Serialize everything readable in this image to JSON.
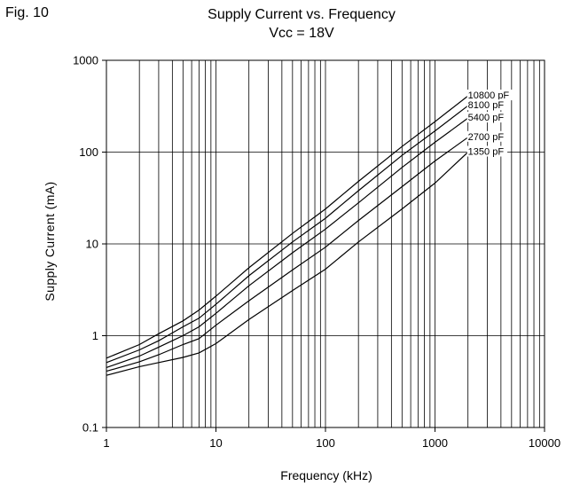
{
  "figure_label": "Fig. 10",
  "chart_data": {
    "type": "line",
    "title": "Supply Current vs. Frequency",
    "subtitle": "Vcc = 18V",
    "xlabel": "Frequency (kHz)",
    "ylabel": "Supply Current (mA)",
    "xscale": "log",
    "yscale": "log",
    "xlim": [
      1,
      10000
    ],
    "ylim": [
      0.1,
      1000
    ],
    "xticks": [
      "1",
      "10",
      "100",
      "1000",
      "10000"
    ],
    "yticks": [
      "0.1",
      "1",
      "10",
      "100",
      "1000"
    ],
    "grid": true,
    "legend": "series labels at right end of curves",
    "series": [
      {
        "name": "10800 pF",
        "x": [
          1,
          2,
          3,
          5,
          7,
          10,
          20,
          50,
          100,
          200,
          500,
          1000,
          2000
        ],
        "y": [
          0.57,
          0.8,
          1.05,
          1.45,
          1.9,
          2.7,
          5.5,
          13,
          24,
          48,
          115,
          215,
          410
        ]
      },
      {
        "name": "8100 pF",
        "x": [
          1,
          2,
          3,
          5,
          7,
          10,
          20,
          50,
          100,
          200,
          500,
          1000,
          2000
        ],
        "y": [
          0.51,
          0.7,
          0.88,
          1.25,
          1.55,
          2.2,
          4.5,
          10.5,
          19,
          38,
          92,
          170,
          320
        ]
      },
      {
        "name": "5400 pF",
        "x": [
          1,
          2,
          3,
          5,
          7,
          10,
          20,
          50,
          100,
          200,
          500,
          1000,
          2000
        ],
        "y": [
          0.45,
          0.6,
          0.75,
          1.0,
          1.25,
          1.75,
          3.5,
          8.0,
          14.5,
          28,
          68,
          128,
          235
        ]
      },
      {
        "name": "2700 pF",
        "x": [
          1,
          2,
          3,
          5,
          7,
          10,
          20,
          50,
          100,
          200,
          500,
          1000,
          2000
        ],
        "y": [
          0.41,
          0.52,
          0.62,
          0.8,
          0.93,
          1.3,
          2.4,
          5.2,
          9.2,
          18,
          42,
          80,
          145
        ]
      },
      {
        "name": "1350 pF",
        "x": [
          1,
          2,
          3,
          5,
          7,
          10,
          20,
          50,
          100,
          200,
          500,
          1000,
          2000
        ],
        "y": [
          0.37,
          0.46,
          0.51,
          0.58,
          0.65,
          0.82,
          1.5,
          3.1,
          5.3,
          10.5,
          24,
          46,
          100
        ]
      }
    ]
  }
}
